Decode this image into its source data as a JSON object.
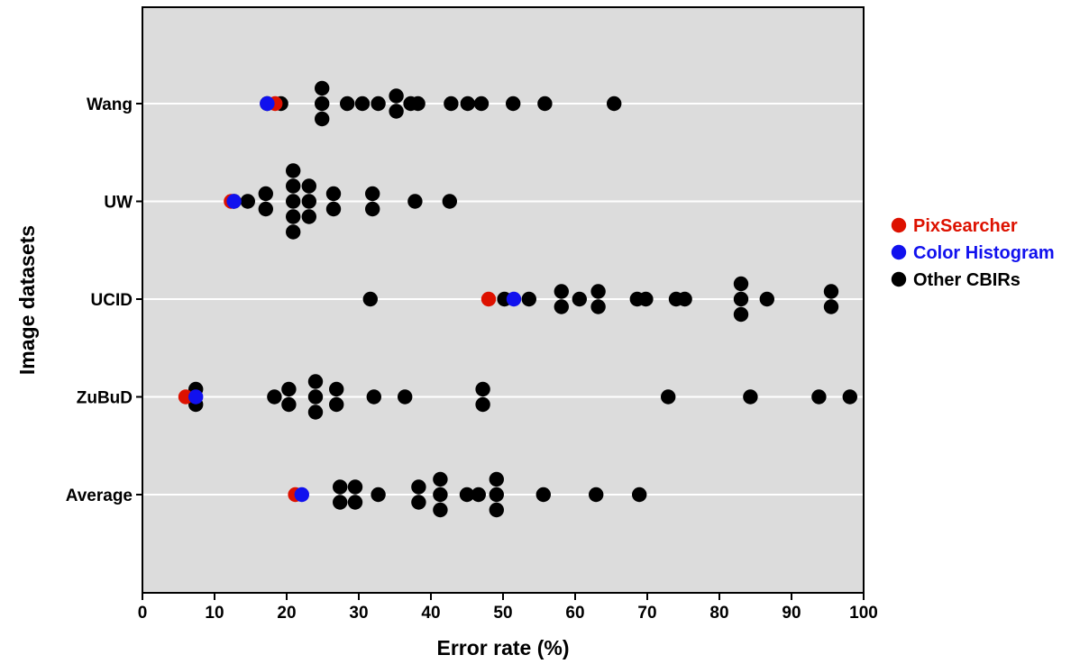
{
  "chart_data": {
    "type": "scatter",
    "xlabel": "Error rate (%)",
    "ylabel": "Image datasets",
    "xlim": [
      0,
      100
    ],
    "x_ticks": [
      "0",
      "10",
      "20",
      "30",
      "40",
      "50",
      "60",
      "70",
      "80",
      "90",
      "100"
    ],
    "categories": [
      "Wang",
      "UW",
      "UCID",
      "ZuBuD",
      "Average"
    ],
    "grid": "horizontal lines at each dataset",
    "legend_position": "right",
    "colors": {
      "background": "#dcdcdc",
      "PixSearcher": "#dd1100",
      "Color Histogram": "#1111ee",
      "Other CBIRs": "#000000"
    },
    "series": [
      {
        "name": "PixSearcher",
        "points": [
          {
            "dataset": "Wang",
            "x": 18.4
          },
          {
            "dataset": "UW",
            "x": 12.3
          },
          {
            "dataset": "UCID",
            "x": 48.0
          },
          {
            "dataset": "ZuBuD",
            "x": 6.0
          },
          {
            "dataset": "Average",
            "x": 21.2
          }
        ]
      },
      {
        "name": "Color Histogram",
        "points": [
          {
            "dataset": "Wang",
            "x": 17.3
          },
          {
            "dataset": "UW",
            "x": 12.7
          },
          {
            "dataset": "UCID",
            "x": 51.5
          },
          {
            "dataset": "ZuBuD",
            "x": 7.4
          },
          {
            "dataset": "Average",
            "x": 22.1
          }
        ]
      },
      {
        "name": "Other CBIRs",
        "points": [
          {
            "dataset": "Wang",
            "x": 17.3
          },
          {
            "dataset": "Wang",
            "x": 19.2
          },
          {
            "dataset": "Wang",
            "x": 24.9
          },
          {
            "dataset": "Wang",
            "x": 24.9
          },
          {
            "dataset": "Wang",
            "x": 24.9
          },
          {
            "dataset": "Wang",
            "x": 28.4
          },
          {
            "dataset": "Wang",
            "x": 30.5
          },
          {
            "dataset": "Wang",
            "x": 32.7
          },
          {
            "dataset": "Wang",
            "x": 35.2
          },
          {
            "dataset": "Wang",
            "x": 35.2
          },
          {
            "dataset": "Wang",
            "x": 37.2
          },
          {
            "dataset": "Wang",
            "x": 38.2
          },
          {
            "dataset": "Wang",
            "x": 42.8
          },
          {
            "dataset": "Wang",
            "x": 45.1
          },
          {
            "dataset": "Wang",
            "x": 47.0
          },
          {
            "dataset": "Wang",
            "x": 51.4
          },
          {
            "dataset": "Wang",
            "x": 55.8
          },
          {
            "dataset": "Wang",
            "x": 65.4
          },
          {
            "dataset": "UW",
            "x": 12.7
          },
          {
            "dataset": "UW",
            "x": 14.6
          },
          {
            "dataset": "UW",
            "x": 17.1
          },
          {
            "dataset": "UW",
            "x": 17.1
          },
          {
            "dataset": "UW",
            "x": 20.9
          },
          {
            "dataset": "UW",
            "x": 20.9
          },
          {
            "dataset": "UW",
            "x": 20.9
          },
          {
            "dataset": "UW",
            "x": 20.9
          },
          {
            "dataset": "UW",
            "x": 20.9
          },
          {
            "dataset": "UW",
            "x": 23.1
          },
          {
            "dataset": "UW",
            "x": 23.1
          },
          {
            "dataset": "UW",
            "x": 23.1
          },
          {
            "dataset": "UW",
            "x": 26.5
          },
          {
            "dataset": "UW",
            "x": 26.5
          },
          {
            "dataset": "UW",
            "x": 31.9
          },
          {
            "dataset": "UW",
            "x": 31.9
          },
          {
            "dataset": "UW",
            "x": 37.8
          },
          {
            "dataset": "UW",
            "x": 42.6
          },
          {
            "dataset": "UCID",
            "x": 31.6
          },
          {
            "dataset": "UCID",
            "x": 50.2
          },
          {
            "dataset": "UCID",
            "x": 53.6
          },
          {
            "dataset": "UCID",
            "x": 58.1
          },
          {
            "dataset": "UCID",
            "x": 58.1
          },
          {
            "dataset": "UCID",
            "x": 60.6
          },
          {
            "dataset": "UCID",
            "x": 63.2
          },
          {
            "dataset": "UCID",
            "x": 63.2
          },
          {
            "dataset": "UCID",
            "x": 68.6
          },
          {
            "dataset": "UCID",
            "x": 69.8
          },
          {
            "dataset": "UCID",
            "x": 74.0
          },
          {
            "dataset": "UCID",
            "x": 75.2
          },
          {
            "dataset": "UCID",
            "x": 83.0
          },
          {
            "dataset": "UCID",
            "x": 83.0
          },
          {
            "dataset": "UCID",
            "x": 83.0
          },
          {
            "dataset": "UCID",
            "x": 86.6
          },
          {
            "dataset": "UCID",
            "x": 95.5
          },
          {
            "dataset": "UCID",
            "x": 95.5
          },
          {
            "dataset": "ZuBuD",
            "x": 7.4
          },
          {
            "dataset": "ZuBuD",
            "x": 7.4
          },
          {
            "dataset": "ZuBuD",
            "x": 18.3
          },
          {
            "dataset": "ZuBuD",
            "x": 20.3
          },
          {
            "dataset": "ZuBuD",
            "x": 20.3
          },
          {
            "dataset": "ZuBuD",
            "x": 24.0
          },
          {
            "dataset": "ZuBuD",
            "x": 24.0
          },
          {
            "dataset": "ZuBuD",
            "x": 24.0
          },
          {
            "dataset": "ZuBuD",
            "x": 26.9
          },
          {
            "dataset": "ZuBuD",
            "x": 26.9
          },
          {
            "dataset": "ZuBuD",
            "x": 32.1
          },
          {
            "dataset": "ZuBuD",
            "x": 36.4
          },
          {
            "dataset": "ZuBuD",
            "x": 47.2
          },
          {
            "dataset": "ZuBuD",
            "x": 47.2
          },
          {
            "dataset": "ZuBuD",
            "x": 72.9
          },
          {
            "dataset": "ZuBuD",
            "x": 84.3
          },
          {
            "dataset": "ZuBuD",
            "x": 93.8
          },
          {
            "dataset": "ZuBuD",
            "x": 98.1
          },
          {
            "dataset": "Average",
            "x": 27.4
          },
          {
            "dataset": "Average",
            "x": 27.4
          },
          {
            "dataset": "Average",
            "x": 29.5
          },
          {
            "dataset": "Average",
            "x": 29.5
          },
          {
            "dataset": "Average",
            "x": 32.7
          },
          {
            "dataset": "Average",
            "x": 38.3
          },
          {
            "dataset": "Average",
            "x": 38.3
          },
          {
            "dataset": "Average",
            "x": 41.3
          },
          {
            "dataset": "Average",
            "x": 41.3
          },
          {
            "dataset": "Average",
            "x": 41.3
          },
          {
            "dataset": "Average",
            "x": 45.0
          },
          {
            "dataset": "Average",
            "x": 46.6
          },
          {
            "dataset": "Average",
            "x": 49.1
          },
          {
            "dataset": "Average",
            "x": 49.1
          },
          {
            "dataset": "Average",
            "x": 49.1
          },
          {
            "dataset": "Average",
            "x": 55.6
          },
          {
            "dataset": "Average",
            "x": 62.9
          },
          {
            "dataset": "Average",
            "x": 68.9
          }
        ]
      }
    ]
  }
}
